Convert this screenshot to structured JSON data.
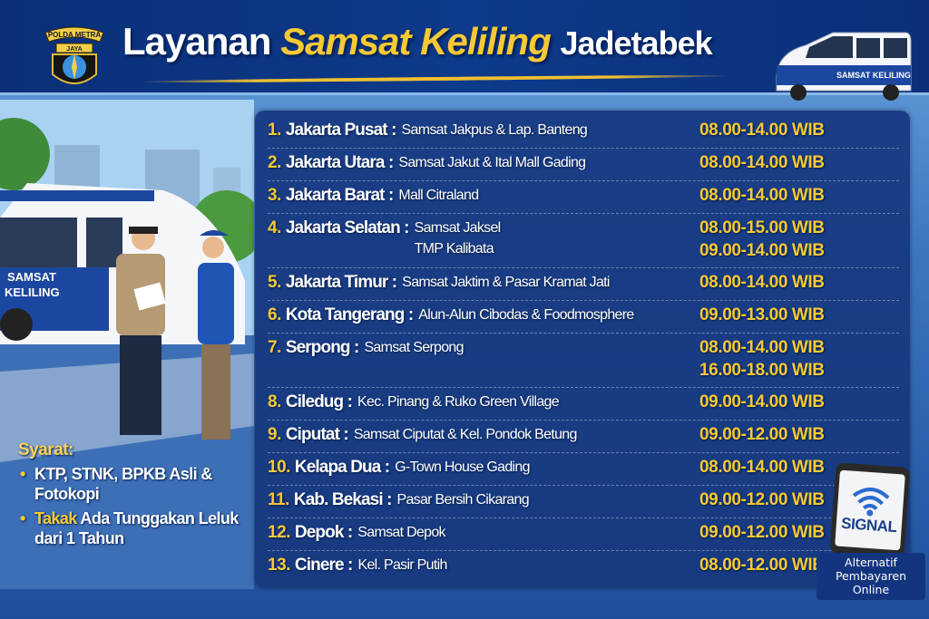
{
  "header": {
    "title_pre": "Layanan",
    "title_highlight": "Samsat Keliling",
    "title_post": "Jadetabek",
    "logo": {
      "top_text": "POLDA METRA",
      "ribbon_text": "JAYA"
    }
  },
  "colors": {
    "header_bg": "#0a2f78",
    "panel_bg": "#1a3e86",
    "accent_yellow": "#f7c935",
    "text_white": "#ffffff"
  },
  "illustration": {
    "van_label": "SAMSAT KELILING",
    "van_top_label": "SAMSAT KELILING"
  },
  "schedule": [
    {
      "num": "1.",
      "region": "Jakarta Pusat :",
      "locations": [
        "Samsat Jakpus & Lap. Banteng"
      ],
      "times": [
        "08.00-14.00 WIB"
      ]
    },
    {
      "num": "2.",
      "region": "Jakarta Utara :",
      "locations": [
        "Samsat Jakut & Ital Mall Gading"
      ],
      "times": [
        "08.00-14.00 WIB"
      ]
    },
    {
      "num": "3.",
      "region": "Jakarta Barat :",
      "locations": [
        "Mall Citraland"
      ],
      "times": [
        "08.00-14.00 WIB"
      ]
    },
    {
      "num": "4.",
      "region": "Jakarta Selatan :",
      "locations": [
        "Samsat Jaksel",
        "TMP Kalibata"
      ],
      "times": [
        "08.00-15.00 WIB",
        "09.00-14.00 WIB"
      ]
    },
    {
      "num": "5.",
      "region": "Jakarta Timur :",
      "locations": [
        "Samsat Jaktim & Pasar Kramat Jati"
      ],
      "times": [
        "08.00-14.00 WIB"
      ]
    },
    {
      "num": "6.",
      "region": "Kota Tangerang :",
      "locations": [
        "Alun-Alun Cibodas & Foodmosphere"
      ],
      "times": [
        "09.00-13.00 WIB"
      ]
    },
    {
      "num": "7.",
      "region": "Serpong :",
      "locations": [
        "Samsat Serpong"
      ],
      "times": [
        "08.00-14.00 WIB",
        "16.00-18.00 WIB"
      ]
    },
    {
      "num": "8.",
      "region": "Ciledug :",
      "locations": [
        "Kec. Pinang & Ruko Green Village"
      ],
      "times": [
        "09.00-14.00 WIB"
      ]
    },
    {
      "num": "9.",
      "region": "Ciputat :",
      "locations": [
        "Samsat Ciputat & Kel. Pondok Betung"
      ],
      "times": [
        "09.00-12.00 WIB"
      ]
    },
    {
      "num": "10.",
      "region": "Kelapa Dua :",
      "locations": [
        "G-Town House Gading"
      ],
      "times": [
        "08.00-14.00 WIB"
      ]
    },
    {
      "num": "11.",
      "region": "Kab. Bekasi :",
      "locations": [
        "Pasar Bersih Cikarang"
      ],
      "times": [
        "09.00-12.00 WIB"
      ]
    },
    {
      "num": "12.",
      "region": "Depok :",
      "locations": [
        "Samsat Depok"
      ],
      "times": [
        "09.00-12.00 WIB"
      ]
    },
    {
      "num": "13.",
      "region": "Cinere :",
      "locations": [
        "Kel. Pasir Putih"
      ],
      "times": [
        "08.00-12.00 WIB"
      ]
    }
  ],
  "syarat": {
    "heading": "Syarat:",
    "item1": "KTP, STNK, BPKB Asli & Fotokopi",
    "item2_highlight": "Takak",
    "item2_rest": " Ada Tunggakan Leluk dari 1 Tahun"
  },
  "signal": {
    "icon": "wifi-icon",
    "app_name": "SIGNAL",
    "caption_1": "Alternatif",
    "caption_2": "Pembayaren",
    "caption_3": "Online"
  }
}
